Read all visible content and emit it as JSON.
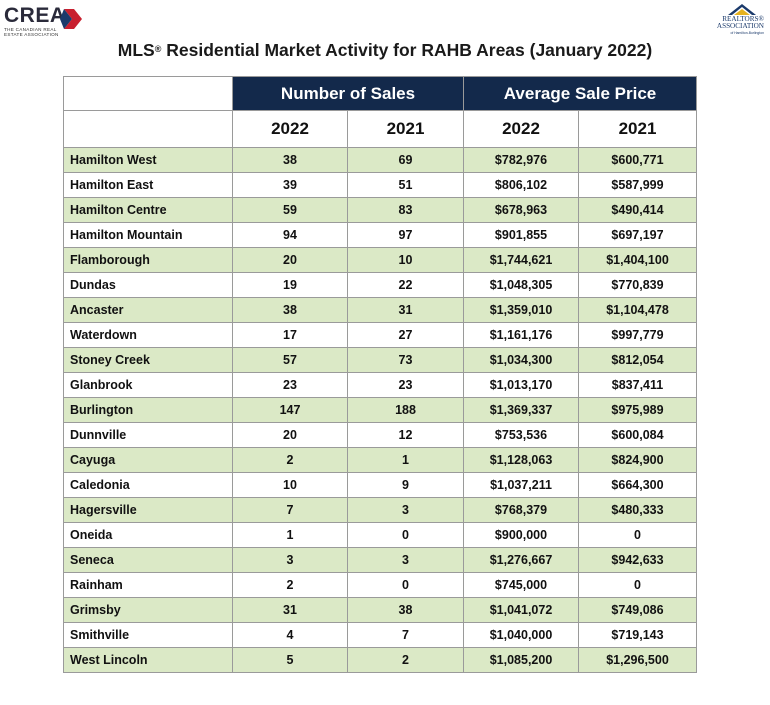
{
  "logos": {
    "crea_word": "CREA",
    "crea_sub": "THE CANADIAN REAL ESTATE ASSOCIATION",
    "realtors_name_1": "REALTORS®",
    "realtors_name_2": "ASSOCIATION",
    "realtors_small": "of Hamilton-Burlington"
  },
  "title_main": "MLS",
  "title_reg": "®",
  "title_rest": " Residential Market Activity for RAHB Areas (January 2022)",
  "header": {
    "sales_group": "Number of Sales",
    "price_group": "Average Sale Price",
    "years": [
      "2022",
      "2021",
      "2022",
      "2021"
    ]
  },
  "colors": {
    "header_bg": "#13294b",
    "row_shade": "#dbe9c6"
  },
  "rows": [
    {
      "area": "Hamilton West",
      "sales_2022": "38",
      "sales_2021": "69",
      "price_2022": "$782,976",
      "price_2021": "$600,771"
    },
    {
      "area": "Hamilton East",
      "sales_2022": "39",
      "sales_2021": "51",
      "price_2022": "$806,102",
      "price_2021": "$587,999"
    },
    {
      "area": "Hamilton Centre",
      "sales_2022": "59",
      "sales_2021": "83",
      "price_2022": "$678,963",
      "price_2021": "$490,414"
    },
    {
      "area": "Hamilton Mountain",
      "sales_2022": "94",
      "sales_2021": "97",
      "price_2022": "$901,855",
      "price_2021": "$697,197"
    },
    {
      "area": "Flamborough",
      "sales_2022": "20",
      "sales_2021": "10",
      "price_2022": "$1,744,621",
      "price_2021": "$1,404,100"
    },
    {
      "area": "Dundas",
      "sales_2022": "19",
      "sales_2021": "22",
      "price_2022": "$1,048,305",
      "price_2021": "$770,839"
    },
    {
      "area": "Ancaster",
      "sales_2022": "38",
      "sales_2021": "31",
      "price_2022": "$1,359,010",
      "price_2021": "$1,104,478"
    },
    {
      "area": "Waterdown",
      "sales_2022": "17",
      "sales_2021": "27",
      "price_2022": "$1,161,176",
      "price_2021": "$997,779"
    },
    {
      "area": "Stoney Creek",
      "sales_2022": "57",
      "sales_2021": "73",
      "price_2022": "$1,034,300",
      "price_2021": "$812,054"
    },
    {
      "area": "Glanbrook",
      "sales_2022": "23",
      "sales_2021": "23",
      "price_2022": "$1,013,170",
      "price_2021": "$837,411"
    },
    {
      "area": "Burlington",
      "sales_2022": "147",
      "sales_2021": "188",
      "price_2022": "$1,369,337",
      "price_2021": "$975,989"
    },
    {
      "area": "Dunnville",
      "sales_2022": "20",
      "sales_2021": "12",
      "price_2022": "$753,536",
      "price_2021": "$600,084"
    },
    {
      "area": "Cayuga",
      "sales_2022": "2",
      "sales_2021": "1",
      "price_2022": "$1,128,063",
      "price_2021": "$824,900"
    },
    {
      "area": "Caledonia",
      "sales_2022": "10",
      "sales_2021": "9",
      "price_2022": "$1,037,211",
      "price_2021": "$664,300"
    },
    {
      "area": "Hagersville",
      "sales_2022": "7",
      "sales_2021": "3",
      "price_2022": "$768,379",
      "price_2021": "$480,333"
    },
    {
      "area": "Oneida",
      "sales_2022": "1",
      "sales_2021": "0",
      "price_2022": "$900,000",
      "price_2021": "0"
    },
    {
      "area": "Seneca",
      "sales_2022": "3",
      "sales_2021": "3",
      "price_2022": "$1,276,667",
      "price_2021": "$942,633"
    },
    {
      "area": "Rainham",
      "sales_2022": "2",
      "sales_2021": "0",
      "price_2022": "$745,000",
      "price_2021": "0"
    },
    {
      "area": "Grimsby",
      "sales_2022": "31",
      "sales_2021": "38",
      "price_2022": "$1,041,072",
      "price_2021": "$749,086"
    },
    {
      "area": "Smithville",
      "sales_2022": "4",
      "sales_2021": "7",
      "price_2022": "$1,040,000",
      "price_2021": "$719,143"
    },
    {
      "area": "West Lincoln",
      "sales_2022": "5",
      "sales_2021": "2",
      "price_2022": "$1,085,200",
      "price_2021": "$1,296,500"
    }
  ]
}
